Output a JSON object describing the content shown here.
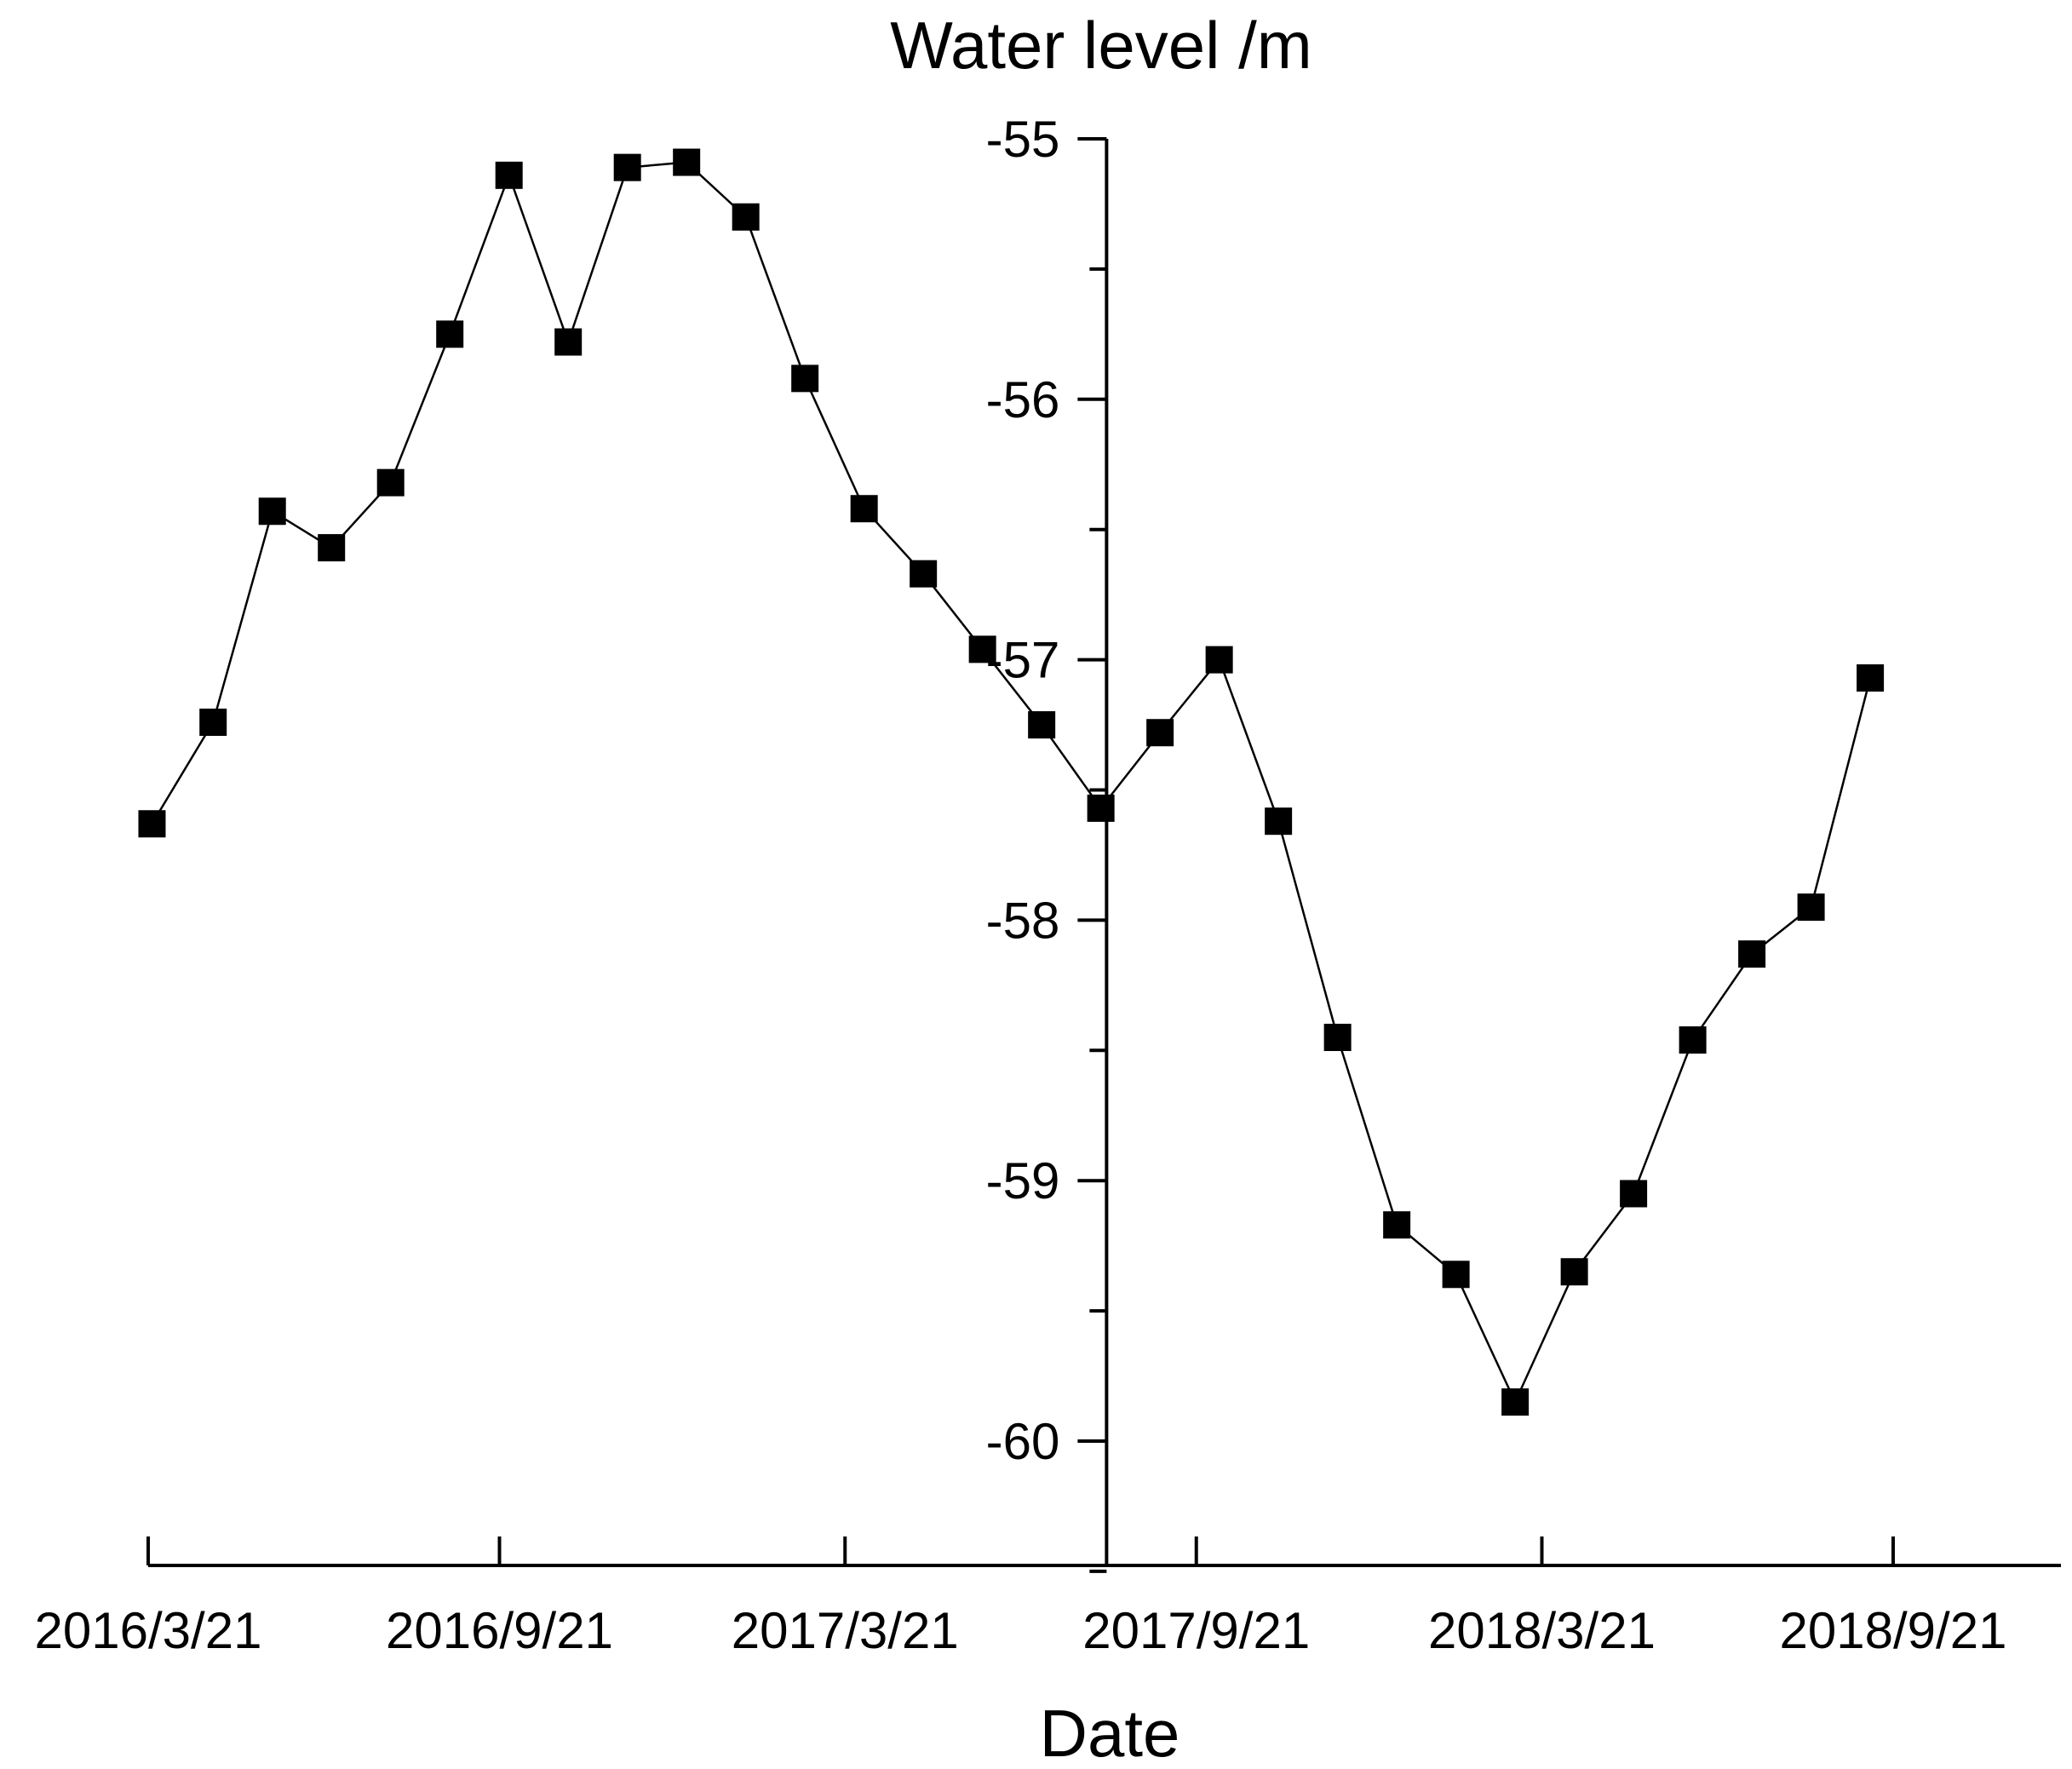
{
  "chart_data": {
    "type": "line",
    "title": "Water level /m",
    "xlabel": "Date",
    "ylabel": "Water level /m",
    "ylim": [
      -60.5,
      -55
    ],
    "yticks": [
      -55,
      -56,
      -57,
      -58,
      -59,
      -60
    ],
    "ytick_labels": [
      "-55",
      "-56",
      "-57",
      "-58",
      "-59",
      "-60"
    ],
    "xlim": [
      "2016-03-21",
      "2018-11-25"
    ],
    "xticks": [
      "2016-03-21",
      "2016-09-21",
      "2017-03-21",
      "2017-09-21",
      "2018-03-21",
      "2018-09-21"
    ],
    "xtick_labels": [
      "2016/3/21",
      "2016/9/21",
      "2017/3/21",
      "2017/9/21",
      "2018/3/21",
      "2018/9/21"
    ],
    "y_axis_crosses_at": "2017-08-05",
    "grid": false,
    "marker": "square",
    "series": [
      {
        "name": "Water level",
        "color": "#000000",
        "points": [
          {
            "x": "2016-03-23",
            "y": -57.63
          },
          {
            "x": "2016-04-24",
            "y": -57.24
          },
          {
            "x": "2016-05-25",
            "y": -56.43
          },
          {
            "x": "2016-06-25",
            "y": -56.57
          },
          {
            "x": "2016-07-26",
            "y": -56.32
          },
          {
            "x": "2016-08-26",
            "y": -55.75
          },
          {
            "x": "2016-09-26",
            "y": -55.14
          },
          {
            "x": "2016-10-27",
            "y": -55.78
          },
          {
            "x": "2016-11-27",
            "y": -55.11
          },
          {
            "x": "2016-12-28",
            "y": -55.09
          },
          {
            "x": "2017-01-28",
            "y": -55.3
          },
          {
            "x": "2017-02-28",
            "y": -55.92
          },
          {
            "x": "2017-03-31",
            "y": -56.42
          },
          {
            "x": "2017-05-01",
            "y": -56.67
          },
          {
            "x": "2017-06-01",
            "y": -56.96
          },
          {
            "x": "2017-07-02",
            "y": -57.25
          },
          {
            "x": "2017-08-02",
            "y": -57.57
          },
          {
            "x": "2017-09-02",
            "y": -57.28
          },
          {
            "x": "2017-10-03",
            "y": -57.0
          },
          {
            "x": "2017-11-03",
            "y": -57.62
          },
          {
            "x": "2017-12-04",
            "y": -58.45
          },
          {
            "x": "2018-01-04",
            "y": -59.17
          },
          {
            "x": "2018-02-04",
            "y": -59.36
          },
          {
            "x": "2018-03-07",
            "y": -59.85
          },
          {
            "x": "2018-04-07",
            "y": -59.35
          },
          {
            "x": "2018-05-08",
            "y": -59.05
          },
          {
            "x": "2018-06-08",
            "y": -58.46
          },
          {
            "x": "2018-07-09",
            "y": -58.13
          },
          {
            "x": "2018-08-09",
            "y": -57.95
          },
          {
            "x": "2018-09-09",
            "y": -57.07
          }
        ]
      }
    ]
  }
}
